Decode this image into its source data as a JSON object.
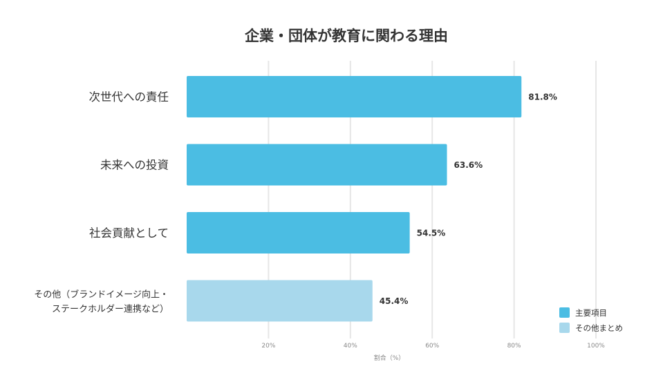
{
  "chart_data": {
    "type": "bar",
    "orientation": "horizontal",
    "title": "企業・団体が教育に関わる理由",
    "xlabel": "割合（%）",
    "ylabel": "",
    "xlim": [
      0,
      100
    ],
    "xticks": [
      20,
      40,
      60,
      80,
      100
    ],
    "xtick_labels": [
      "20%",
      "40%",
      "60%",
      "80%",
      "100%"
    ],
    "grid": true,
    "legend_position": "bottom-right",
    "categories": [
      [
        "次世代への責任"
      ],
      [
        "未来への投資"
      ],
      [
        "社会貢献として"
      ],
      [
        "その他（ブランドイメージ向上・",
        "ステークホルダー連携など）"
      ]
    ],
    "values": [
      81.8,
      63.6,
      54.5,
      45.4
    ],
    "value_labels": [
      "81.8%",
      "63.6%",
      "54.5%",
      "45.4%"
    ],
    "bar_groups": [
      "主要項目",
      "主要項目",
      "主要項目",
      "その他まとめ"
    ],
    "legend": [
      {
        "name": "主要項目",
        "color": "#4bbde3"
      },
      {
        "name": "その他まとめ",
        "color": "#a8d8ec"
      }
    ]
  },
  "colors": {
    "primary_bar": "#4bbde3",
    "secondary_bar": "#a8d8ec",
    "grid": "#e6e6e6",
    "text": "#333333",
    "axis_text": "#888888"
  }
}
